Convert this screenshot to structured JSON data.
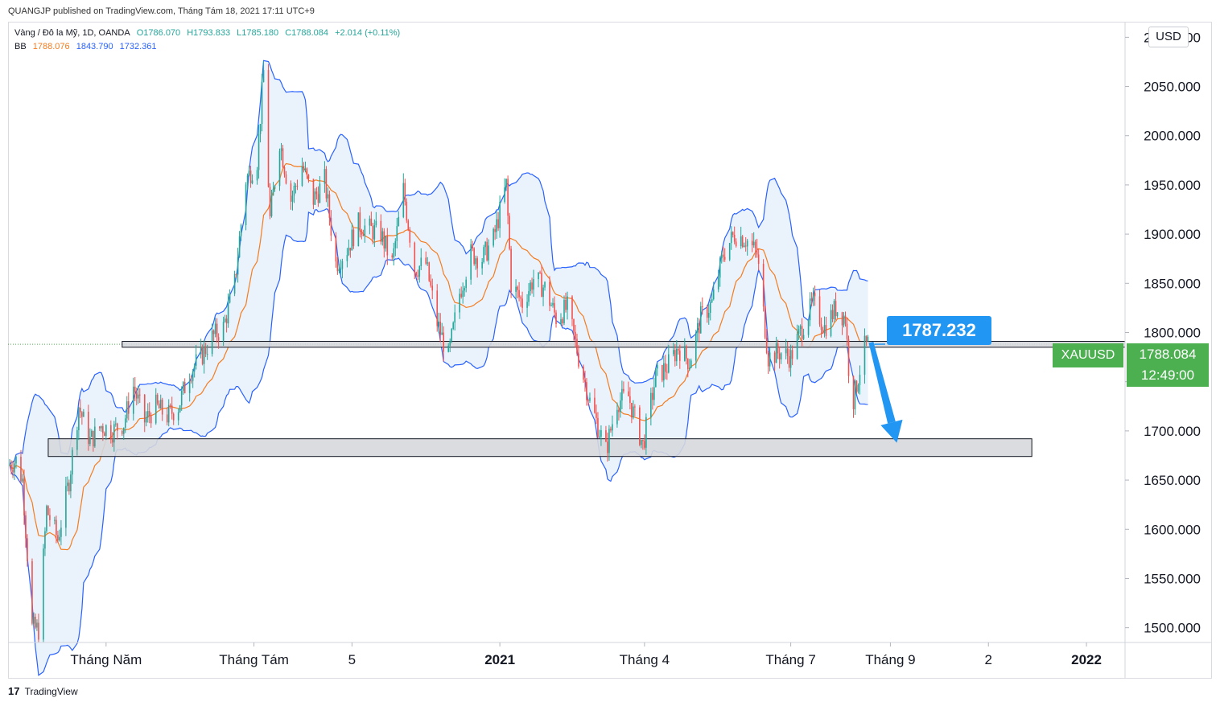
{
  "header": {
    "publisher_line": "QUANGJP published on TradingView.com, Tháng Tám 18, 2021 17:11 UTC+9"
  },
  "legend": {
    "symbol_line": "Vàng / Đô la Mỹ, 1D, OANDA",
    "open": "O1786.070",
    "high": "H1793.833",
    "low": "L1785.180",
    "close": "C1788.084",
    "change": "+2.014 (+0.11%)",
    "bb_label": "BB",
    "bb_basis": "1788.076",
    "bb_upper": "1843.790",
    "bb_lower": "1732.361"
  },
  "price_axis": {
    "currency": "USD"
  },
  "last_price": {
    "symbol": "XAUUSD",
    "price": "1788.084",
    "countdown": "12:49:00"
  },
  "annotation": {
    "callout_text": "1787.232"
  },
  "footer": {
    "brand": "TradingView",
    "logo_text": "17"
  },
  "colors": {
    "up": "#26a69a",
    "down": "#ef5350",
    "bb_basis": "#f57c1f",
    "bb_band": "#2962ff",
    "bb_fill": "#eaf2fb",
    "zone": "#d6d8dd",
    "label_green": "#4caf50",
    "callout_blue": "#2196f3"
  },
  "chart_data": {
    "type": "candlestick",
    "title": "Vàng / Đô la Mỹ, 1D, OANDA",
    "ylim": [
      1485,
      2115
    ],
    "yticks": [
      1500,
      1550,
      1600,
      1650,
      1700,
      1750,
      1800,
      1850,
      1900,
      1950,
      2000,
      2050,
      2100
    ],
    "ytick_labels": [
      "1500.000",
      "1550.000",
      "1600.000",
      "1650.000",
      "1700.000",
      "1750.000",
      "1800.000",
      "1850.000",
      "1900.000",
      "1950.000",
      "2000.000",
      "2050.000",
      "2100.000"
    ],
    "x_range": [
      "2020-03-01",
      "2022-01-25"
    ],
    "xticks": [
      {
        "date": "2020-05-01",
        "label": "Tháng Năm"
      },
      {
        "date": "2020-08-01",
        "label": "Tháng Tám"
      },
      {
        "date": "2020-10-01",
        "label": "5"
      },
      {
        "date": "2021-01-01",
        "label": "2021"
      },
      {
        "date": "2021-04-01",
        "label": "Tháng 4"
      },
      {
        "date": "2021-07-01",
        "label": "Tháng 7"
      },
      {
        "date": "2021-09-01",
        "label": "Tháng 9"
      },
      {
        "date": "2021-11-01",
        "label": "2"
      },
      {
        "date": "2022-01-01",
        "label": "2022"
      }
    ],
    "close_series": [
      [
        "2020-03-01",
        1665
      ],
      [
        "2020-03-06",
        1670
      ],
      [
        "2020-03-10",
        1650
      ],
      [
        "2020-03-16",
        1500
      ],
      [
        "2020-03-20",
        1498
      ],
      [
        "2020-03-25",
        1620
      ],
      [
        "2020-04-01",
        1590
      ],
      [
        "2020-04-08",
        1650
      ],
      [
        "2020-04-14",
        1725
      ],
      [
        "2020-04-21",
        1690
      ],
      [
        "2020-04-28",
        1705
      ],
      [
        "2020-05-05",
        1700
      ],
      [
        "2020-05-12",
        1708
      ],
      [
        "2020-05-18",
        1745
      ],
      [
        "2020-05-25",
        1710
      ],
      [
        "2020-06-01",
        1725
      ],
      [
        "2020-06-08",
        1715
      ],
      [
        "2020-06-15",
        1725
      ],
      [
        "2020-06-22",
        1760
      ],
      [
        "2020-06-29",
        1775
      ],
      [
        "2020-07-06",
        1795
      ],
      [
        "2020-07-13",
        1805
      ],
      [
        "2020-07-20",
        1850
      ],
      [
        "2020-07-27",
        1955
      ],
      [
        "2020-08-03",
        1975
      ],
      [
        "2020-08-07",
        2065
      ],
      [
        "2020-08-11",
        1915
      ],
      [
        "2020-08-17",
        1995
      ],
      [
        "2020-08-24",
        1935
      ],
      [
        "2020-08-31",
        1970
      ],
      [
        "2020-09-07",
        1935
      ],
      [
        "2020-09-14",
        1955
      ],
      [
        "2020-09-21",
        1870
      ],
      [
        "2020-09-28",
        1885
      ],
      [
        "2020-10-05",
        1910
      ],
      [
        "2020-10-12",
        1905
      ],
      [
        "2020-10-19",
        1900
      ],
      [
        "2020-10-26",
        1870
      ],
      [
        "2020-11-02",
        1945
      ],
      [
        "2020-11-09",
        1865
      ],
      [
        "2020-11-16",
        1870
      ],
      [
        "2020-11-23",
        1810
      ],
      [
        "2020-11-30",
        1775
      ],
      [
        "2020-12-07",
        1840
      ],
      [
        "2020-12-14",
        1880
      ],
      [
        "2020-12-21",
        1875
      ],
      [
        "2020-12-28",
        1895
      ],
      [
        "2021-01-05",
        1950
      ],
      [
        "2021-01-08",
        1850
      ],
      [
        "2021-01-15",
        1830
      ],
      [
        "2021-01-22",
        1855
      ],
      [
        "2021-01-29",
        1845
      ],
      [
        "2021-02-05",
        1815
      ],
      [
        "2021-02-12",
        1825
      ],
      [
        "2021-02-19",
        1775
      ],
      [
        "2021-02-26",
        1730
      ],
      [
        "2021-03-08",
        1680
      ],
      [
        "2021-03-15",
        1730
      ],
      [
        "2021-03-22",
        1735
      ],
      [
        "2021-03-31",
        1685
      ],
      [
        "2021-04-08",
        1755
      ],
      [
        "2021-04-15",
        1765
      ],
      [
        "2021-04-22",
        1785
      ],
      [
        "2021-04-29",
        1770
      ],
      [
        "2021-05-06",
        1815
      ],
      [
        "2021-05-13",
        1830
      ],
      [
        "2021-05-20",
        1880
      ],
      [
        "2021-05-27",
        1900
      ],
      [
        "2021-06-03",
        1895
      ],
      [
        "2021-06-10",
        1880
      ],
      [
        "2021-06-17",
        1775
      ],
      [
        "2021-06-24",
        1780
      ],
      [
        "2021-07-01",
        1775
      ],
      [
        "2021-07-08",
        1805
      ],
      [
        "2021-07-15",
        1830
      ],
      [
        "2021-07-22",
        1805
      ],
      [
        "2021-07-29",
        1825
      ],
      [
        "2021-08-04",
        1815
      ],
      [
        "2021-08-06",
        1765
      ],
      [
        "2021-08-09",
        1732
      ],
      [
        "2021-08-12",
        1755
      ],
      [
        "2021-08-16",
        1785
      ],
      [
        "2021-08-18",
        1788
      ]
    ],
    "series": [
      {
        "name": "BB",
        "values": [
          "1788.076",
          "1843.790",
          "1732.361"
        ]
      }
    ],
    "horizontal_zones": [
      {
        "from": 1785,
        "to": 1791,
        "start": "2020-05-11",
        "end": "2022-01-25"
      },
      {
        "from": 1674,
        "to": 1692,
        "start": "2020-03-26",
        "end": "2021-11-28"
      }
    ],
    "callout": {
      "value": 1787.232
    },
    "projection_arrow": {
      "from": [
        "2021-08-20",
        1790
      ],
      "to": [
        "2021-09-05",
        1688
      ]
    },
    "grid": false,
    "legend_position": "top-left"
  }
}
